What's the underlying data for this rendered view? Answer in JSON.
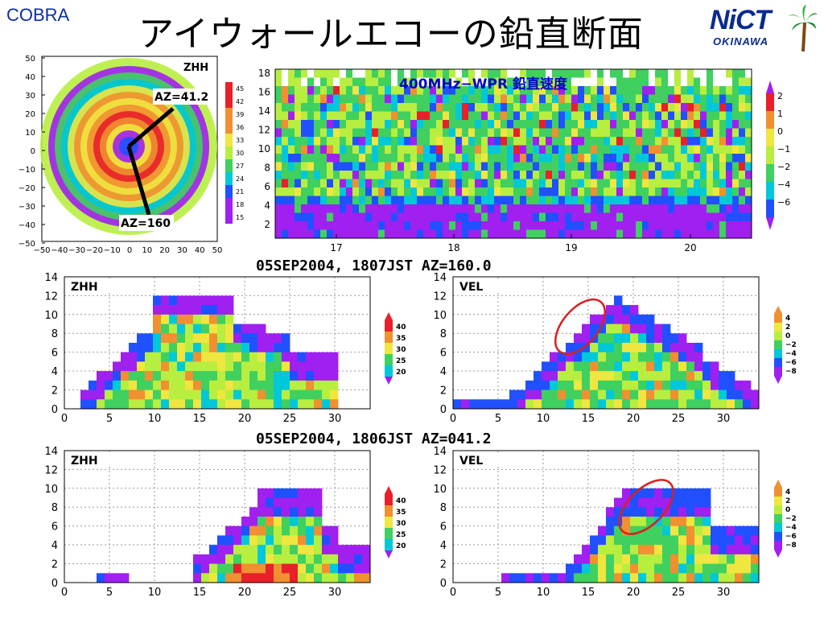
{
  "header": {
    "left_label": "COBRA",
    "title": "アイウォールエコーの鉛直断面",
    "logo_text": "NiCT",
    "logo_sub": "OKINAWA"
  },
  "colors": {
    "purple": "#a020f0",
    "blue": "#2050ff",
    "cyan": "#00c8d8",
    "green": "#40d060",
    "lime": "#b8ee40",
    "yellow": "#f0e640",
    "orange": "#f09030",
    "red": "#e8202a",
    "ellipse": "#d82020",
    "title_blue": "#0000cc"
  },
  "ppi": {
    "field_label": "ZHH",
    "az_label_1": "AZ=41.2",
    "az_label_2": "AZ=160",
    "xticks": [
      "−50",
      "−40",
      "−30",
      "−20",
      "−10",
      "0",
      "10",
      "20",
      "30",
      "40",
      "50"
    ],
    "yticks": [
      "50",
      "40",
      "30",
      "20",
      "10",
      "0",
      "−10",
      "−20",
      "−30",
      "−40",
      "−50"
    ],
    "colorbar": [
      "45",
      "42",
      "39",
      "36",
      "33",
      "30",
      "27",
      "24",
      "21",
      "18",
      "15"
    ]
  },
  "wpr": {
    "title": "400MHz−WPR 鉛直速度",
    "yticks": [
      "18",
      "16",
      "14",
      "12",
      "10",
      "8",
      "6",
      "4",
      "2"
    ],
    "xticks": [
      "17",
      "18",
      "19",
      "20"
    ],
    "colorbar": [
      "2",
      "1",
      "0",
      "−1",
      "−2",
      "−4",
      "−6"
    ]
  },
  "sections": {
    "title_1": "05SEP2004, 1807JST AZ=160.0",
    "title_2": "05SEP2004, 1806JST AZ=041.2",
    "zhh_label": "ZHH",
    "vel_label": "VEL",
    "yticks": [
      "14",
      "12",
      "10",
      "8",
      "6",
      "4",
      "2",
      "0"
    ],
    "xticks": [
      "0",
      "5",
      "10",
      "15",
      "20",
      "25",
      "30"
    ],
    "zhh_colorbar": [
      "40",
      "35",
      "30",
      "25",
      "20"
    ],
    "vel_colorbar": [
      "4",
      "2",
      "0",
      "−2",
      "−4",
      "−6",
      "−8"
    ]
  },
  "chart_data": [
    {
      "type": "heatmap",
      "title": "",
      "field": "ZHH",
      "x_range": [
        -50,
        50
      ],
      "y_range": [
        -50,
        50
      ],
      "annotations": [
        "AZ=41.2",
        "AZ=160"
      ],
      "colorbar_ticks": [
        45,
        42,
        39,
        36,
        33,
        30,
        27,
        24,
        21,
        18,
        15
      ]
    },
    {
      "type": "heatmap",
      "title": "400MHz−WPR 鉛直速度",
      "x_ticks": [
        17,
        18,
        19,
        20
      ],
      "y_range": [
        0,
        18
      ],
      "colorbar_ticks": [
        2,
        1,
        0,
        -1,
        -2,
        -4,
        -6
      ]
    },
    {
      "type": "heatmap",
      "title": "05SEP2004, 1807JST AZ=160.0",
      "field": "ZHH",
      "x_range": [
        0,
        34
      ],
      "y_range": [
        0,
        14
      ],
      "colorbar_ticks": [
        40,
        35,
        30,
        25,
        20
      ]
    },
    {
      "type": "heatmap",
      "title": "05SEP2004, 1807JST AZ=160.0",
      "field": "VEL",
      "x_range": [
        0,
        34
      ],
      "y_range": [
        0,
        14
      ],
      "colorbar_ticks": [
        4,
        2,
        0,
        -2,
        -4,
        -6,
        -8
      ]
    },
    {
      "type": "heatmap",
      "title": "05SEP2004, 1806JST AZ=041.2",
      "field": "ZHH",
      "x_range": [
        0,
        34
      ],
      "y_range": [
        0,
        14
      ],
      "colorbar_ticks": [
        40,
        35,
        30,
        25,
        20
      ]
    },
    {
      "type": "heatmap",
      "title": "05SEP2004, 1806JST AZ=041.2",
      "field": "VEL",
      "x_range": [
        0,
        34
      ],
      "y_range": [
        0,
        14
      ],
      "colorbar_ticks": [
        4,
        2,
        0,
        -2,
        -4,
        -6,
        -8
      ]
    }
  ]
}
